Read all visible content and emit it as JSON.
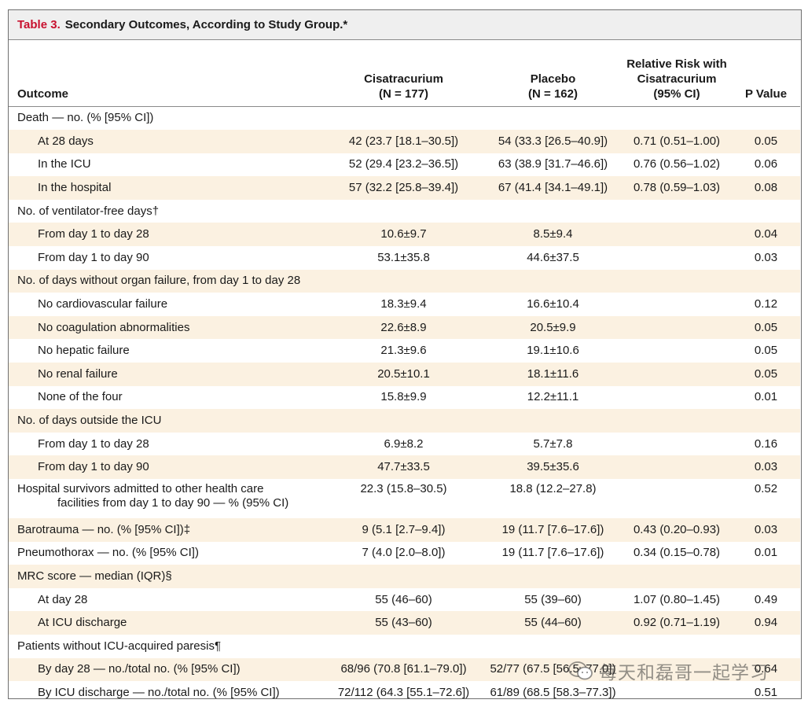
{
  "table": {
    "label": "Table 3.",
    "title": "Secondary Outcomes, According to Study Group.*",
    "headers": {
      "outcome": "Outcome",
      "cis_line1": "Cisatracurium",
      "cis_line2": "(N = 177)",
      "placebo_line1": "Placebo",
      "placebo_line2": "(N = 162)",
      "rr_line1": "Relative Risk with",
      "rr_line2": "Cisatracurium",
      "rr_line3": "(95% CI)",
      "pvalue": "P Value"
    },
    "rows": [
      {
        "label": "Death — no. (% [95% CI])",
        "cis": "",
        "placebo": "",
        "rr": "",
        "p": ""
      },
      {
        "label": "At 28 days",
        "cis": "42 (23.7 [18.1–30.5])",
        "placebo": "54 (33.3 [26.5–40.9])",
        "rr": "0.71 (0.51–1.00)",
        "p": "0.05"
      },
      {
        "label": "In the ICU",
        "cis": "52 (29.4 [23.2–36.5])",
        "placebo": "63 (38.9 [31.7–46.6])",
        "rr": "0.76 (0.56–1.02)",
        "p": "0.06"
      },
      {
        "label": "In the hospital",
        "cis": "57 (32.2 [25.8–39.4])",
        "placebo": "67 (41.4 [34.1–49.1])",
        "rr": "0.78 (0.59–1.03)",
        "p": "0.08"
      },
      {
        "label": "No. of ventilator-free days†",
        "cis": "",
        "placebo": "",
        "rr": "",
        "p": ""
      },
      {
        "label": "From day 1 to day 28",
        "cis": "10.6±9.7",
        "placebo": "8.5±9.4",
        "rr": "",
        "p": "0.04"
      },
      {
        "label": "From day 1 to day 90",
        "cis": "53.1±35.8",
        "placebo": "44.6±37.5",
        "rr": "",
        "p": "0.03"
      },
      {
        "label": "No. of days without organ failure, from day 1 to day 28",
        "cis": "",
        "placebo": "",
        "rr": "",
        "p": ""
      },
      {
        "label": "No cardiovascular failure",
        "cis": "18.3±9.4",
        "placebo": "16.6±10.4",
        "rr": "",
        "p": "0.12"
      },
      {
        "label": "No coagulation abnormalities",
        "cis": "22.6±8.9",
        "placebo": "20.5±9.9",
        "rr": "",
        "p": "0.05"
      },
      {
        "label": "No hepatic failure",
        "cis": "21.3±9.6",
        "placebo": "19.1±10.6",
        "rr": "",
        "p": "0.05"
      },
      {
        "label": "No renal failure",
        "cis": "20.5±10.1",
        "placebo": "18.1±11.6",
        "rr": "",
        "p": "0.05"
      },
      {
        "label": "None of the four",
        "cis": "15.8±9.9",
        "placebo": "12.2±11.1",
        "rr": "",
        "p": "0.01"
      },
      {
        "label": "No. of days outside the ICU",
        "cis": "",
        "placebo": "",
        "rr": "",
        "p": ""
      },
      {
        "label": "From day 1 to day 28",
        "cis": "6.9±8.2",
        "placebo": "5.7±7.8",
        "rr": "",
        "p": "0.16"
      },
      {
        "label": "From day 1 to day 90",
        "cis": "47.7±33.5",
        "placebo": "39.5±35.6",
        "rr": "",
        "p": "0.03"
      },
      {
        "label": "Hospital survivors admitted to other health care",
        "label2": "facilities from day 1 to day 90 — % (95% CI)",
        "cis": "22.3 (15.8–30.5)",
        "placebo": "18.8 (12.2–27.8)",
        "rr": "",
        "p": "0.52"
      },
      {
        "label": "Barotrauma — no. (% [95% CI])‡",
        "cis": "9 (5.1 [2.7–9.4])",
        "placebo": "19 (11.7 [7.6–17.6])",
        "rr": "0.43 (0.20–0.93)",
        "p": "0.03"
      },
      {
        "label": "Pneumothorax — no. (% [95% CI])",
        "cis": "7 (4.0 [2.0–8.0])",
        "placebo": "19 (11.7 [7.6–17.6])",
        "rr": "0.34 (0.15–0.78)",
        "p": "0.01"
      },
      {
        "label": "MRC score — median (IQR)§",
        "cis": "",
        "placebo": "",
        "rr": "",
        "p": ""
      },
      {
        "label": "At day 28",
        "cis": "55 (46–60)",
        "placebo": "55 (39–60)",
        "rr": "1.07 (0.80–1.45)",
        "p": "0.49"
      },
      {
        "label": "At ICU discharge",
        "cis": "55 (43–60)",
        "placebo": "55 (44–60)",
        "rr": "0.92 (0.71–1.19)",
        "p": "0.94"
      },
      {
        "label": "Patients without ICU-acquired paresis¶",
        "cis": "",
        "placebo": "",
        "rr": "",
        "p": ""
      },
      {
        "label": "By day 28 — no./total no. (% [95% CI])",
        "cis": "68/96 (70.8 [61.1–79.0])",
        "placebo": "52/77 (67.5 [56.5–77.0])",
        "rr": "",
        "p": "0.64"
      },
      {
        "label": "By ICU discharge — no./total no. (% [95% CI])",
        "cis": "72/112 (64.3 [55.1–72.6])",
        "placebo": "61/89 (68.5 [58.3–77.3])",
        "rr": "",
        "p": "0.51"
      }
    ]
  },
  "watermark": {
    "text": "每天和磊哥一起学习",
    "icon": "wechat-icon"
  }
}
